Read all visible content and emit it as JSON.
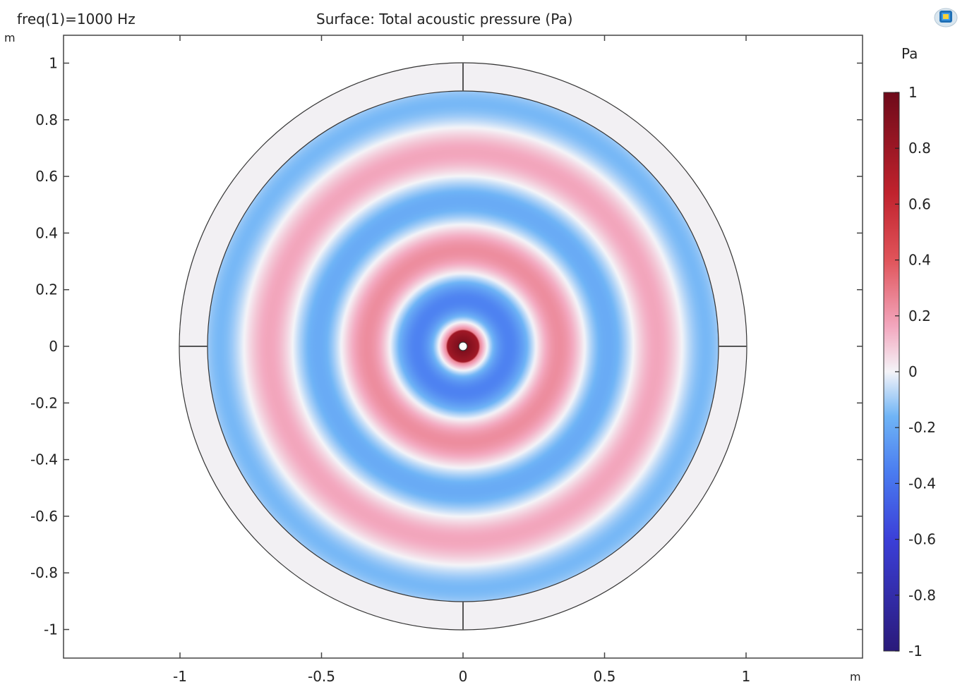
{
  "header": {
    "param": "freq(1)=1000 Hz",
    "title": "Surface: Total acoustic pressure (Pa)"
  },
  "colorbar": {
    "unit": "Pa",
    "ticks": [
      "1",
      "0.8",
      "0.6",
      "0.4",
      "0.2",
      "0",
      "-0.2",
      "-0.4",
      "-0.6",
      "-0.8",
      "-1"
    ],
    "min": -1,
    "max": 1,
    "colors": [
      "#2a1a7a",
      "#3b3fd8",
      "#4a7cf0",
      "#6fb4f6",
      "#f4f4f8",
      "#f3a8bf",
      "#e0545a",
      "#c0222d",
      "#6e0a1a"
    ]
  },
  "logo_icon": "comsol-logo-icon",
  "chart_data": {
    "type": "heatmap",
    "title": "Surface: Total acoustic pressure (Pa)",
    "parameter": "freq(1)=1000 Hz",
    "xlabel": "m",
    "ylabel": "m",
    "xlim": [
      -1.4,
      1.4
    ],
    "ylim": [
      -1.1,
      1.1
    ],
    "xticks": [
      "-1",
      "-0.5",
      "0",
      "0.5",
      "1"
    ],
    "xtick_values": [
      -1,
      -0.5,
      0,
      0.5,
      1
    ],
    "yticks": [
      "1",
      "0.8",
      "0.6",
      "0.4",
      "0.2",
      "0",
      "-0.2",
      "-0.4",
      "-0.6",
      "-0.8",
      "-1"
    ],
    "ytick_values": [
      1,
      0.8,
      0.6,
      0.4,
      0.2,
      0,
      -0.2,
      -0.4,
      -0.6,
      -0.8,
      -1
    ],
    "field": {
      "description_shape": "radial standing wave",
      "wavelength_m": 0.343,
      "source_radius_m": 0.015,
      "inner_domain_radius_m": 0.9,
      "outer_domain_radius_m": 1.0,
      "ring_peaks_m": [
        0.0,
        0.17,
        0.34,
        0.51,
        0.68,
        0.85
      ],
      "ring_peak_values": [
        1.0,
        -0.45,
        0.35,
        -0.28,
        0.24,
        -0.2
      ]
    },
    "colorbar_range": [
      -1,
      1
    ],
    "grid": false
  },
  "colors": {
    "background": "#ffffff",
    "axis": "#444444",
    "pml": "#f2f0f3"
  }
}
